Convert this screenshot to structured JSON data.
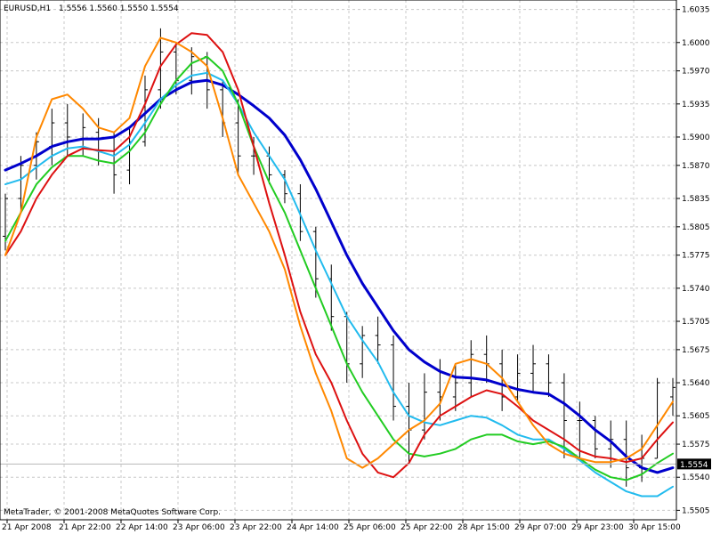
{
  "header": {
    "symbol": "EURUSD,H1",
    "ohlc": "1.5556 1.5560 1.5550 1.5554"
  },
  "footer": {
    "copyright": "MetaTrader, © 2001-2008 MetaQuotes Software Corp."
  },
  "chart_data": {
    "type": "line",
    "ylim": [
      1.5495,
      1.6045
    ],
    "grid": true,
    "y_ticks": [
      "1.6035",
      "1.6000",
      "1.5970",
      "1.5935",
      "1.5900",
      "1.5870",
      "1.5835",
      "1.5805",
      "1.5775",
      "1.5740",
      "1.5705",
      "1.5675",
      "1.5640",
      "1.5605",
      "1.5575",
      "1.5540",
      "1.5505"
    ],
    "x_tick_labels": [
      "21 Apr 2008",
      "21 Apr 22:00",
      "22 Apr 14:00",
      "23 Apr 06:00",
      "23 Apr 22:00",
      "24 Apr 14:00",
      "25 Apr 06:00",
      "25 Apr 22:00",
      "28 Apr 15:00",
      "29 Apr 07:00",
      "29 Apr 23:00",
      "30 Apr 15:00"
    ],
    "current_price": "1.5554",
    "price_bars": [
      [
        0,
        1.584,
        1.578,
        1.5795,
        1.5835
      ],
      [
        1,
        1.588,
        1.582,
        1.5835,
        1.587
      ],
      [
        2,
        1.5905,
        1.5855,
        1.587,
        1.5895
      ],
      [
        3,
        1.593,
        1.587,
        1.589,
        1.5915
      ],
      [
        4,
        1.5935,
        1.588,
        1.5915,
        1.59
      ],
      [
        5,
        1.5925,
        1.588,
        1.589,
        1.591
      ],
      [
        6,
        1.592,
        1.587,
        1.5905,
        1.5885
      ],
      [
        7,
        1.5905,
        1.584,
        1.5885,
        1.586
      ],
      [
        8,
        1.591,
        1.585,
        1.5865,
        1.5895
      ],
      [
        9,
        1.5965,
        1.589,
        1.5895,
        1.595
      ],
      [
        10,
        1.6015,
        1.593,
        1.595,
        1.599
      ],
      [
        11,
        1.6,
        1.5945,
        1.599,
        1.596
      ],
      [
        12,
        1.5995,
        1.5945,
        1.596,
        1.5985
      ],
      [
        13,
        1.599,
        1.593,
        1.5985,
        1.595
      ],
      [
        14,
        1.596,
        1.59,
        1.595,
        1.5915
      ],
      [
        15,
        1.594,
        1.586,
        1.5915,
        1.588
      ],
      [
        16,
        1.59,
        1.586,
        1.588,
        1.588
      ],
      [
        17,
        1.589,
        1.585,
        1.588,
        1.586
      ],
      [
        18,
        1.5865,
        1.583,
        1.586,
        1.584
      ],
      [
        19,
        1.585,
        1.579,
        1.584,
        1.58
      ],
      [
        20,
        1.5805,
        1.573,
        1.58,
        1.575
      ],
      [
        21,
        1.5765,
        1.5695,
        1.575,
        1.571
      ],
      [
        22,
        1.5715,
        1.564,
        1.571,
        1.566
      ],
      [
        23,
        1.57,
        1.5645,
        1.566,
        1.569
      ],
      [
        24,
        1.571,
        1.566,
        1.569,
        1.568
      ],
      [
        25,
        1.569,
        1.56,
        1.568,
        1.5615
      ],
      [
        26,
        1.564,
        1.5555,
        1.5615,
        1.559
      ],
      [
        27,
        1.565,
        1.558,
        1.559,
        1.563
      ],
      [
        28,
        1.5665,
        1.56,
        1.563,
        1.5625
      ],
      [
        29,
        1.566,
        1.561,
        1.5625,
        1.564
      ],
      [
        30,
        1.5685,
        1.5625,
        1.564,
        1.567
      ],
      [
        31,
        1.569,
        1.564,
        1.567,
        1.566
      ],
      [
        32,
        1.5675,
        1.561,
        1.566,
        1.5625
      ],
      [
        33,
        1.567,
        1.562,
        1.5625,
        1.565
      ],
      [
        34,
        1.568,
        1.563,
        1.565,
        1.566
      ],
      [
        35,
        1.567,
        1.5625,
        1.566,
        1.564
      ],
      [
        36,
        1.565,
        1.556,
        1.564,
        1.56
      ],
      [
        37,
        1.562,
        1.556,
        1.56,
        1.56
      ],
      [
        38,
        1.5605,
        1.556,
        1.56,
        1.557
      ],
      [
        39,
        1.56,
        1.555,
        1.557,
        1.558
      ],
      [
        40,
        1.56,
        1.553,
        1.558,
        1.555
      ],
      [
        41,
        1.5585,
        1.5535,
        1.555,
        1.556
      ],
      [
        42,
        1.5645,
        1.556,
        1.556,
        1.564
      ],
      [
        43,
        1.5645,
        1.5605,
        1.5625,
        1.5635
      ]
    ],
    "series": [
      {
        "color": "#0000cc",
        "values": [
          1.5865,
          1.5872,
          1.588,
          1.589,
          1.5895,
          1.5898,
          1.5898,
          1.59,
          1.591,
          1.5925,
          1.594,
          1.595,
          1.5958,
          1.596,
          1.5955,
          1.5945,
          1.5933,
          1.592,
          1.5902,
          1.5876,
          1.5845,
          1.581,
          1.5775,
          1.5745,
          1.572,
          1.5695,
          1.5675,
          1.5662,
          1.5652,
          1.5646,
          1.5645,
          1.5643,
          1.5638,
          1.5633,
          1.563,
          1.5628,
          1.5618,
          1.5605,
          1.559,
          1.5578,
          1.5562,
          1.555,
          1.5545,
          1.555
        ]
      },
      {
        "color": "#22bbee",
        "values": [
          1.585,
          1.5855,
          1.5868,
          1.588,
          1.5888,
          1.589,
          1.5885,
          1.588,
          1.5892,
          1.5915,
          1.594,
          1.5955,
          1.5965,
          1.5968,
          1.596,
          1.5935,
          1.5905,
          1.588,
          1.5855,
          1.5818,
          1.578,
          1.5745,
          1.571,
          1.5685,
          1.5662,
          1.563,
          1.5605,
          1.5598,
          1.5595,
          1.56,
          1.5605,
          1.5603,
          1.5595,
          1.5585,
          1.558,
          1.558,
          1.557,
          1.5558,
          1.5545,
          1.5535,
          1.5525,
          1.552,
          1.552,
          1.553
        ]
      },
      {
        "color": "#22cc22",
        "values": [
          1.579,
          1.582,
          1.585,
          1.5868,
          1.588,
          1.588,
          1.5875,
          1.5872,
          1.5885,
          1.5905,
          1.5935,
          1.596,
          1.5978,
          1.5985,
          1.597,
          1.5935,
          1.589,
          1.5852,
          1.582,
          1.578,
          1.574,
          1.57,
          1.566,
          1.563,
          1.5605,
          1.558,
          1.5565,
          1.5562,
          1.5565,
          1.557,
          1.558,
          1.5585,
          1.5585,
          1.5578,
          1.5575,
          1.5578,
          1.5572,
          1.556,
          1.5548,
          1.554,
          1.5537,
          1.5543,
          1.5555,
          1.5565
        ]
      },
      {
        "color": "#dd1111",
        "values": [
          1.5775,
          1.58,
          1.5835,
          1.586,
          1.588,
          1.5888,
          1.5886,
          1.5885,
          1.59,
          1.5935,
          1.5975,
          1.5998,
          1.601,
          1.6008,
          1.599,
          1.595,
          1.589,
          1.583,
          1.5775,
          1.5715,
          1.567,
          1.564,
          1.56,
          1.5565,
          1.5545,
          1.554,
          1.5555,
          1.5585,
          1.5605,
          1.5615,
          1.5625,
          1.5632,
          1.5628,
          1.5615,
          1.56,
          1.559,
          1.558,
          1.5568,
          1.5562,
          1.556,
          1.5556,
          1.556,
          1.558,
          1.5598
        ]
      },
      {
        "color": "#ff8800",
        "values": [
          1.5775,
          1.582,
          1.59,
          1.594,
          1.5945,
          1.593,
          1.591,
          1.5905,
          1.592,
          1.5975,
          1.6005,
          1.6,
          1.599,
          1.5975,
          1.592,
          1.586,
          1.583,
          1.58,
          1.576,
          1.57,
          1.565,
          1.561,
          1.556,
          1.555,
          1.556,
          1.5575,
          1.559,
          1.56,
          1.5618,
          1.566,
          1.5665,
          1.566,
          1.5645,
          1.562,
          1.5595,
          1.5575,
          1.5565,
          1.556,
          1.5556,
          1.5556,
          1.556,
          1.557,
          1.5595,
          1.562
        ]
      }
    ]
  }
}
